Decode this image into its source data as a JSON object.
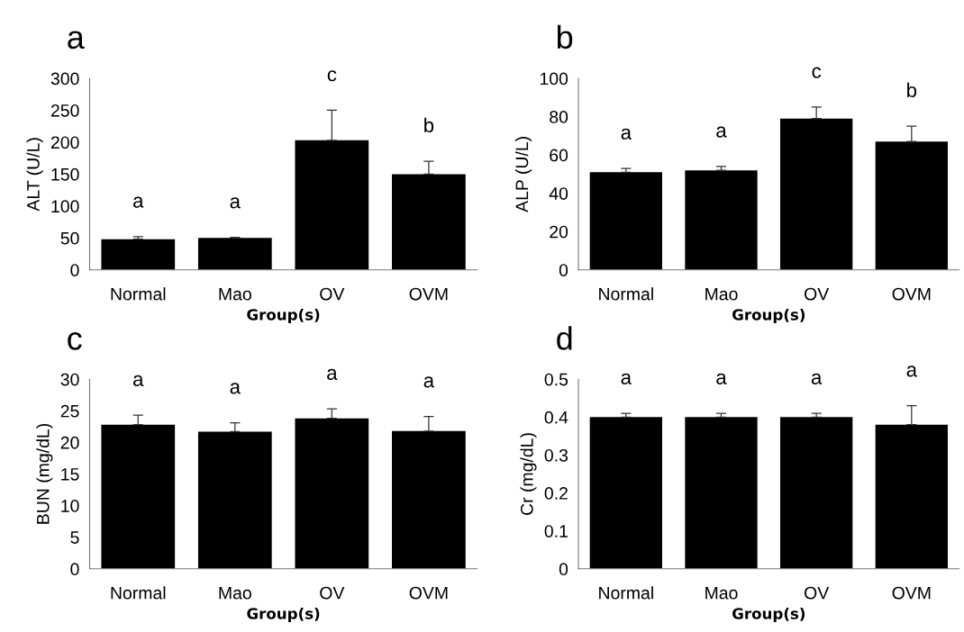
{
  "chart_data": [
    {
      "type": "bar",
      "title": "a",
      "xlabel": "Group(s)",
      "ylabel": "ALT (U/L)",
      "categories": [
        "Normal",
        "Mao",
        "OV",
        "OVM"
      ],
      "values": [
        48,
        50,
        203,
        150
      ],
      "color": "#000000",
      "errors": [
        [
          48,
          52
        ],
        [
          50,
          51
        ],
        [
          203,
          250
        ],
        [
          150,
          170
        ]
      ],
      "ylim": [
        0,
        300
      ],
      "yticks": [
        0,
        50,
        100,
        150,
        200,
        250,
        300
      ],
      "value_labels": [
        "a",
        "a",
        "c",
        "b"
      ]
    },
    {
      "type": "bar",
      "title": "b",
      "xlabel": "Group(s)",
      "ylabel": "ALP (U/L)",
      "categories": [
        "Normal",
        "Mao",
        "OV",
        "OVM"
      ],
      "values": [
        51,
        52,
        79,
        67
      ],
      "color": "#000000",
      "errors": [
        [
          51,
          53
        ],
        [
          52,
          54
        ],
        [
          79,
          85
        ],
        [
          67,
          75
        ]
      ],
      "ylim": [
        0,
        100
      ],
      "yticks": [
        0,
        20,
        40,
        60,
        80,
        100
      ],
      "value_labels": [
        "a",
        "a",
        "c",
        "b"
      ]
    },
    {
      "type": "bar",
      "title": "c",
      "xlabel": "Group(s)",
      "ylabel": "BUN (mg/dL)",
      "categories": [
        "Normal",
        "Mao",
        "OV",
        "OVM"
      ],
      "values": [
        22.8,
        21.7,
        23.8,
        21.8
      ],
      "color": "#000000",
      "errors": [
        [
          22.8,
          24.3
        ],
        [
          21.7,
          23.1
        ],
        [
          23.8,
          25.3
        ],
        [
          21.8,
          24.1
        ]
      ],
      "ylim": [
        0,
        30
      ],
      "yticks": [
        0,
        5,
        10,
        15,
        20,
        25,
        30
      ],
      "value_labels": [
        "a",
        "a",
        "a",
        "a"
      ]
    },
    {
      "type": "bar",
      "title": "d",
      "xlabel": "Group(s)",
      "ylabel": "Cr (mg/dL)",
      "categories": [
        "Normal",
        "Mao",
        "OV",
        "OVM"
      ],
      "values": [
        0.4,
        0.4,
        0.4,
        0.38
      ],
      "color": "#000000",
      "errors": [
        [
          0.4,
          0.41
        ],
        [
          0.4,
          0.41
        ],
        [
          0.4,
          0.41
        ],
        [
          0.38,
          0.43
        ]
      ],
      "ylim": [
        0,
        0.5
      ],
      "yticks": [
        0,
        0.1,
        0.2,
        0.3,
        0.4,
        0.5
      ],
      "value_labels": [
        "a",
        "a",
        "a",
        "a"
      ]
    }
  ]
}
